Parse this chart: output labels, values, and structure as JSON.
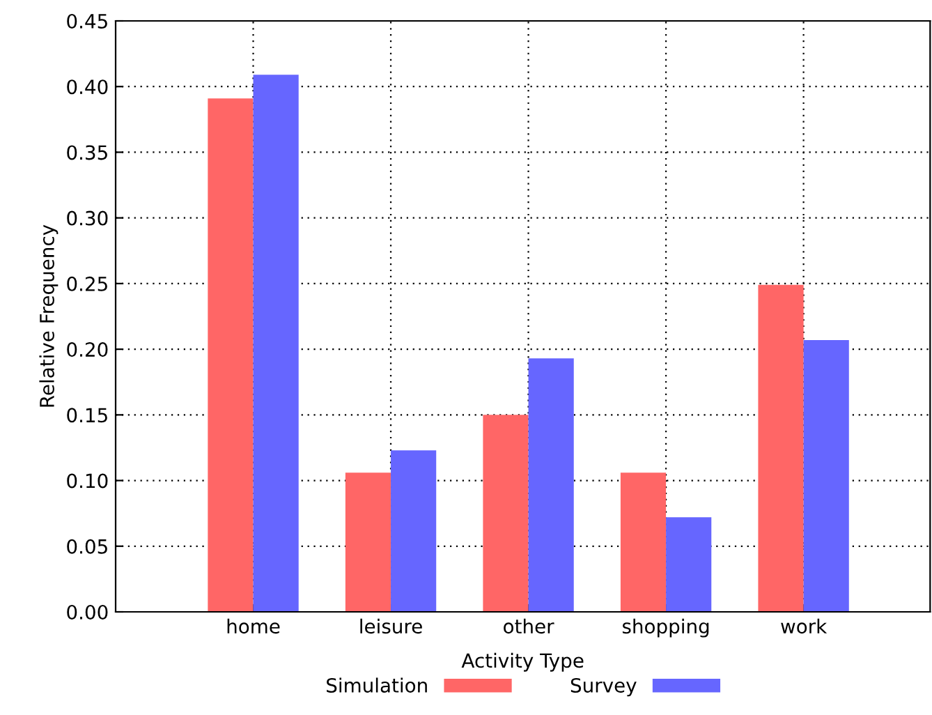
{
  "chart_data": {
    "type": "bar",
    "xlabel": "Activity Type",
    "ylabel": "Relative Frequency",
    "categories": [
      "home",
      "leisure",
      "other",
      "shopping",
      "work"
    ],
    "series": [
      {
        "name": "Simulation",
        "color": "#ff6666",
        "values": [
          0.391,
          0.106,
          0.15,
          0.106,
          0.249
        ]
      },
      {
        "name": "Survey",
        "color": "#6666ff",
        "values": [
          0.409,
          0.123,
          0.193,
          0.072,
          0.207
        ]
      }
    ],
    "ylim": [
      0,
      0.45
    ],
    "yticks": [
      {
        "value": 0,
        "label": "0.00"
      },
      {
        "value": 0.05,
        "label": "0.05"
      },
      {
        "value": 0.1,
        "label": "0.10"
      },
      {
        "value": 0.15,
        "label": "0.15"
      },
      {
        "value": 0.2,
        "label": "0.20"
      },
      {
        "value": 0.25,
        "label": "0.25"
      },
      {
        "value": 0.3,
        "label": "0.30"
      },
      {
        "value": 0.35,
        "label": "0.35"
      },
      {
        "value": 0.4,
        "label": "0.40"
      },
      {
        "value": 0.45,
        "label": "0.45"
      }
    ],
    "grid": true,
    "legend": "bottom"
  }
}
